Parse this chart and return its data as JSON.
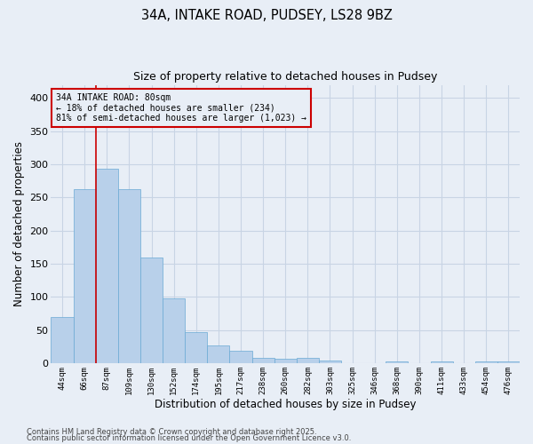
{
  "title1": "34A, INTAKE ROAD, PUDSEY, LS28 9BZ",
  "title2": "Size of property relative to detached houses in Pudsey",
  "xlabel": "Distribution of detached houses by size in Pudsey",
  "ylabel": "Number of detached properties",
  "categories": [
    "44sqm",
    "66sqm",
    "87sqm",
    "109sqm",
    "130sqm",
    "152sqm",
    "174sqm",
    "195sqm",
    "217sqm",
    "238sqm",
    "260sqm",
    "282sqm",
    "303sqm",
    "325sqm",
    "346sqm",
    "368sqm",
    "390sqm",
    "411sqm",
    "433sqm",
    "454sqm",
    "476sqm"
  ],
  "values": [
    70,
    263,
    293,
    263,
    160,
    98,
    47,
    27,
    19,
    8,
    6,
    8,
    4,
    0,
    0,
    3,
    0,
    2,
    0,
    2,
    3
  ],
  "bar_color": "#b8d0ea",
  "bar_edge_color": "#6aaad4",
  "grid_color": "#c8d4e4",
  "background_color": "#e8eef6",
  "vline_x_idx": 1,
  "vline_color": "#cc0000",
  "annotation_line1": "34A INTAKE ROAD: 80sqm",
  "annotation_line2": "← 18% of detached houses are smaller (234)",
  "annotation_line3": "81% of semi-detached houses are larger (1,023) →",
  "annotation_box_color": "#cc0000",
  "ylim": [
    0,
    420
  ],
  "yticks": [
    0,
    50,
    100,
    150,
    200,
    250,
    300,
    350,
    400
  ],
  "footer1": "Contains HM Land Registry data © Crown copyright and database right 2025.",
  "footer2": "Contains public sector information licensed under the Open Government Licence v3.0."
}
